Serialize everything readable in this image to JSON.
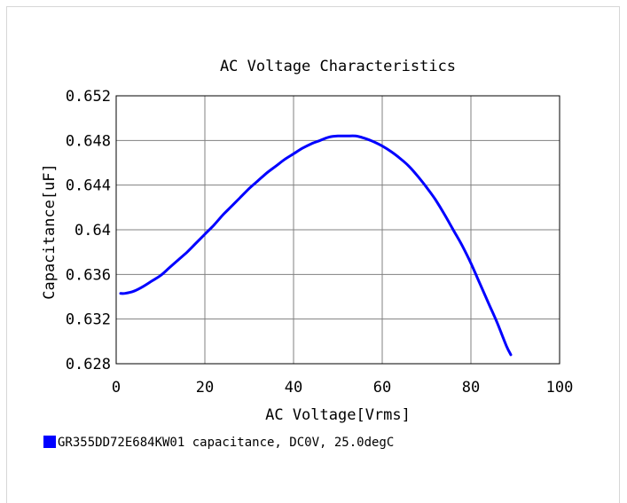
{
  "chart_data": {
    "type": "line",
    "title": "AC Voltage Characteristics",
    "xlabel": "AC Voltage[Vrms]",
    "ylabel": "Capacitance[uF]",
    "xlim": [
      0,
      100
    ],
    "ylim": [
      0.628,
      0.652
    ],
    "x_ticks": [
      "0",
      "20",
      "40",
      "60",
      "80",
      "100"
    ],
    "y_ticks": [
      "0.628",
      "0.632",
      "0.636",
      "0.64",
      "0.644",
      "0.648",
      "0.652"
    ],
    "grid": true,
    "legend_position": "bottom-left",
    "series": [
      {
        "name": "GR355DD72E684KW01 capacitance, DC0V, 25.0degC",
        "color": "#0000ff",
        "x": [
          1,
          2,
          4,
          6,
          8,
          10,
          12,
          14,
          16,
          18,
          20,
          22,
          24,
          26,
          28,
          30,
          32,
          34,
          36,
          38,
          40,
          42,
          44,
          46,
          48,
          50,
          52,
          54,
          56,
          58,
          60,
          62,
          64,
          66,
          68,
          70,
          72,
          74,
          76,
          78,
          80,
          82,
          84,
          86,
          88,
          89
        ],
        "y": [
          0.6343,
          0.6343,
          0.6345,
          0.6349,
          0.6354,
          0.6359,
          0.6366,
          0.6373,
          0.638,
          0.6388,
          0.6396,
          0.6404,
          0.6413,
          0.6421,
          0.6429,
          0.6437,
          0.6444,
          0.6451,
          0.6457,
          0.6463,
          0.6468,
          0.6473,
          0.6477,
          0.648,
          0.6483,
          0.6484,
          0.6484,
          0.6484,
          0.6482,
          0.6479,
          0.6475,
          0.647,
          0.6464,
          0.6457,
          0.6448,
          0.6438,
          0.6427,
          0.6414,
          0.64,
          0.6386,
          0.637,
          0.6352,
          0.6334,
          0.6316,
          0.6296,
          0.6288
        ]
      }
    ]
  }
}
